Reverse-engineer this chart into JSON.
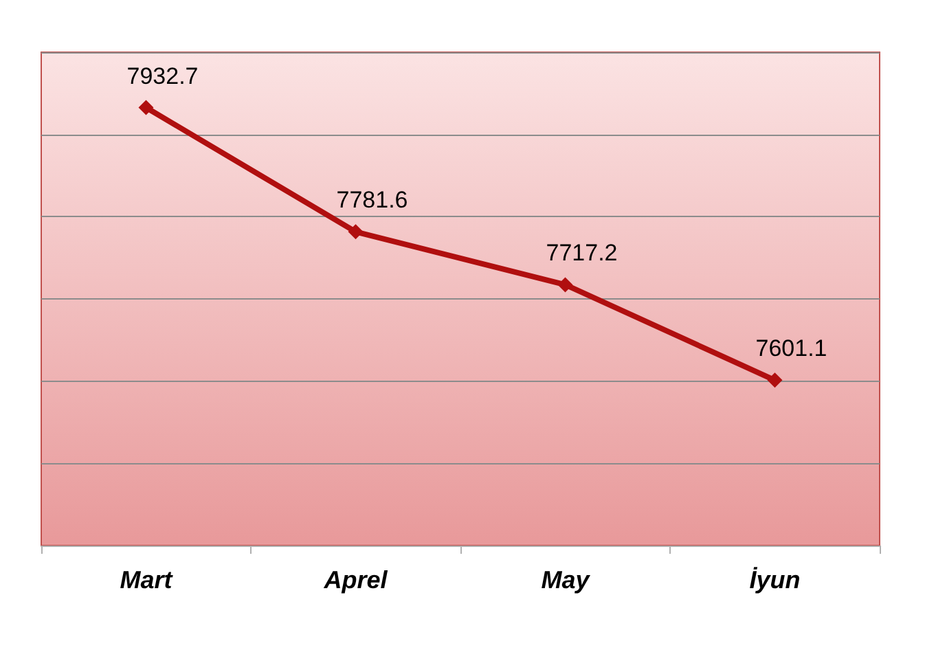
{
  "chart_data": {
    "type": "line",
    "categories": [
      "Mart",
      "Aprel",
      "May",
      "İyun"
    ],
    "series": [
      {
        "color": "#b00f0f",
        "values": [
          7932.7,
          7781.6,
          7717.2,
          7601.1
        ]
      }
    ],
    "ylim": [
      7400,
      8000
    ],
    "yticks": [
      {
        "value": 7400,
        "label": null
      },
      {
        "value": 7500,
        "label": null
      },
      {
        "value": 7600,
        "label": null
      },
      {
        "value": 7700,
        "label": null
      },
      {
        "value": 7800,
        "label": null
      },
      {
        "value": 7900,
        "label": null
      },
      {
        "value": 8000,
        "label": null
      }
    ],
    "tick_labels": "x",
    "grid": "y",
    "marker": "diamond",
    "line_style": "solid",
    "data_labels": true
  }
}
